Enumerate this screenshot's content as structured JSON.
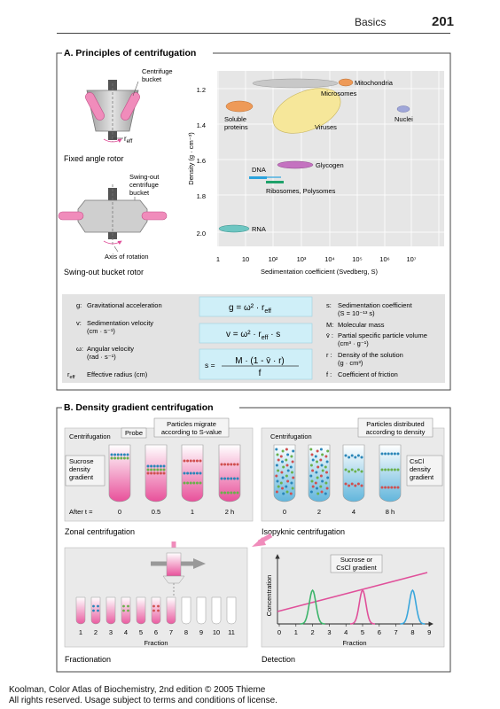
{
  "header": {
    "section": "Basics",
    "page": "201"
  },
  "sectionA": {
    "title": "A. Principles of centrifugation",
    "rotor1": {
      "caption": "Fixed angle rotor",
      "bucket_label": [
        "Centrifuge",
        "bucket"
      ],
      "reff": "r",
      "reff_sub": "eff"
    },
    "rotor2": {
      "caption": "Swing-out bucket rotor",
      "bucket_label": [
        "Swing-out",
        "centrifuge",
        "bucket"
      ],
      "axis_label": "Axis of rotation"
    },
    "plot": {
      "ylabel": "Density (g · cm⁻³)",
      "xlabel": "Sedimentation coefficient   (Svedberg, S)",
      "yticks": [
        "1.2",
        "1.4",
        "1.6",
        "1.8",
        "2.0"
      ],
      "xticks": [
        "1",
        "10",
        "10²",
        "10³",
        "10⁴",
        "10⁵",
        "10⁶",
        "10⁷"
      ],
      "labels": {
        "mitochondria": "Mitochondria",
        "microsomes": "Microsomes",
        "soluble": [
          "Soluble",
          "proteins"
        ],
        "viruses": "Viruses",
        "nuclei": "Nuclei",
        "glycogen": "Glycogen",
        "dna": "DNA",
        "ribosomes": "Ribosomes, Polysomes",
        "rna": "RNA"
      }
    },
    "legend_left": {
      "g_sym": "g:",
      "g_text": "Gravitational acceleration",
      "v_sym": "v:",
      "v_text": [
        "Sedimentation velocity",
        "(cm · s⁻¹)"
      ],
      "w_sym": "ω:",
      "w_text": [
        "Angular velocity",
        "(rad · s⁻¹)"
      ],
      "r_sym": "r",
      "r_sub": "eff",
      "r_text": "Effective radius (cm)"
    },
    "formulas": {
      "f1": "g = ω² · r",
      "f1_sub": "eff",
      "f2": "v = ω² · r",
      "f2_sub": "eff",
      "f2_tail": " · s",
      "f3_lhs": "s =",
      "f3_num": "M · (1 - v̄ · r)",
      "f3_den": "f"
    },
    "legend_right": {
      "s_sym": "s:",
      "s_text": [
        "Sedimentation coefficient",
        "(S = 10⁻¹³ s)"
      ],
      "m_sym": "M:",
      "m_text": "Molecular mass",
      "vbar_sym": "v̄ :",
      "vbar_text": [
        "Partial specific particle volume",
        "(cm³ · g⁻¹)"
      ],
      "rho_sym": "r :",
      "rho_text": [
        "Density of the solution",
        "(g · cm³)"
      ],
      "f_sym": "f :",
      "f_text": "Coefficient of friction"
    }
  },
  "sectionB": {
    "title": "B. Density gradient centrifugation",
    "zonal": {
      "centrifugation": "Centrifugation",
      "probe": "Probe",
      "migrate": [
        "Particles migrate",
        "according to S-value"
      ],
      "gradient": [
        "Sucrose",
        "density",
        "gradient"
      ],
      "after": "After t =",
      "times": [
        "0",
        "0.5",
        "1",
        "2 h"
      ],
      "caption": "Zonal centrifugation"
    },
    "isopyknic": {
      "centrifugation": "Centrifugation",
      "distributed": [
        "Particles distributed",
        "according to density"
      ],
      "gradient": [
        "CsCl",
        "density",
        "gradient"
      ],
      "times": [
        "0",
        "2",
        "4",
        "8 h"
      ],
      "caption": "Isopyknic centrifugation"
    },
    "fractionation": {
      "ticks": [
        "1",
        "2",
        "3",
        "4",
        "5",
        "6",
        "7",
        "8",
        "9",
        "10",
        "11"
      ],
      "xlabel": "Fraction",
      "caption": "Fractionation"
    },
    "detection": {
      "ylabel": "Concentration",
      "gradient_label": [
        "Sucrose or",
        "CsCl gradient"
      ],
      "ticks": [
        "0",
        "1",
        "2",
        "3",
        "4",
        "5",
        "6",
        "7",
        "8",
        "9"
      ],
      "xlabel": "Fraction",
      "caption": "Detection"
    }
  },
  "footer": {
    "line1": "Koolman, Color Atlas of Biochemistry, 2nd edition © 2005 Thieme",
    "line2": "All rights reserved. Usage subject to terms and conditions of license."
  }
}
